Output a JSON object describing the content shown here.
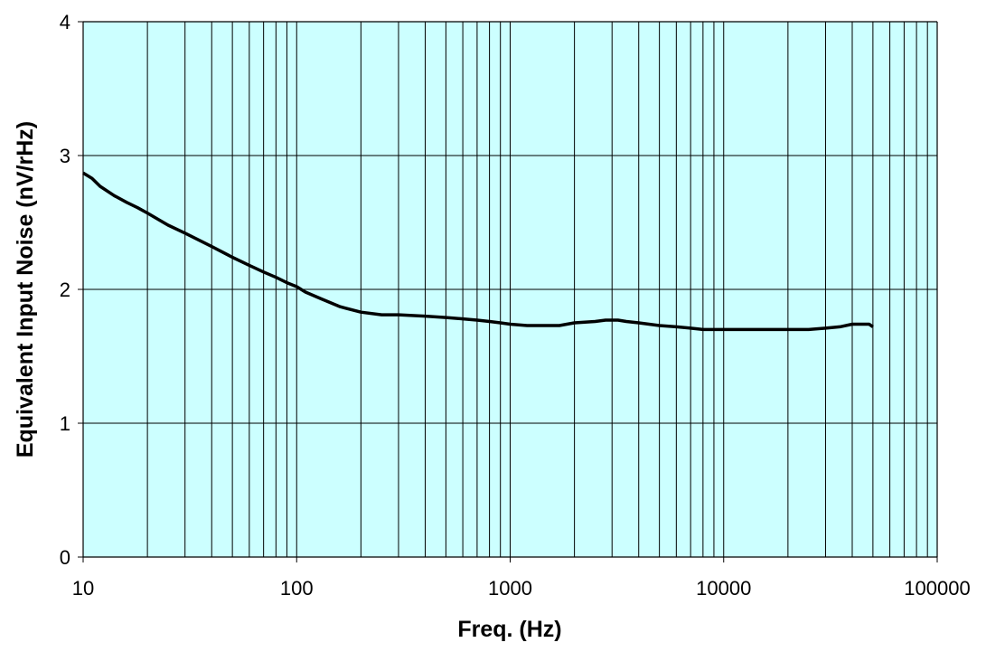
{
  "chart_data": {
    "type": "line",
    "title": "",
    "xlabel": "Freq. (Hz)",
    "ylabel": "Equivalent Input Noise (nV/rHz)",
    "x_scale": "log",
    "xlim": [
      10,
      100000
    ],
    "ylim": [
      0,
      4
    ],
    "x_ticks": [
      10,
      100,
      1000,
      10000,
      100000
    ],
    "x_tick_labels": [
      "10",
      "100",
      "1000",
      "10000",
      "100000"
    ],
    "y_ticks": [
      0,
      1,
      2,
      3,
      4
    ],
    "y_tick_labels": [
      "0",
      "1",
      "2",
      "3",
      "4"
    ],
    "grid": true,
    "legend": "none",
    "colors": {
      "plot_background": "#ccffff",
      "grid": "#000000",
      "line": "#000000"
    },
    "series": [
      {
        "x": [
          10,
          11,
          12,
          14,
          16,
          18,
          20,
          25,
          30,
          40,
          50,
          60,
          70,
          80,
          90,
          100,
          110,
          130,
          160,
          200,
          250,
          300,
          400,
          500,
          600,
          700,
          800,
          900,
          1000,
          1200,
          1500,
          1700,
          2000,
          2500,
          2800,
          3200,
          3500,
          4000,
          5000,
          6000,
          7000,
          8000,
          9000,
          10000,
          15000,
          20000,
          25000,
          30000,
          35000,
          40000,
          45000,
          48000,
          50000
        ],
        "y": [
          2.87,
          2.83,
          2.77,
          2.7,
          2.65,
          2.61,
          2.57,
          2.48,
          2.42,
          2.32,
          2.24,
          2.18,
          2.13,
          2.09,
          2.05,
          2.02,
          1.98,
          1.93,
          1.87,
          1.83,
          1.81,
          1.81,
          1.8,
          1.79,
          1.78,
          1.77,
          1.76,
          1.75,
          1.74,
          1.73,
          1.73,
          1.73,
          1.75,
          1.76,
          1.77,
          1.77,
          1.76,
          1.75,
          1.73,
          1.72,
          1.71,
          1.7,
          1.7,
          1.7,
          1.7,
          1.7,
          1.7,
          1.71,
          1.72,
          1.74,
          1.74,
          1.74,
          1.72
        ]
      }
    ]
  }
}
